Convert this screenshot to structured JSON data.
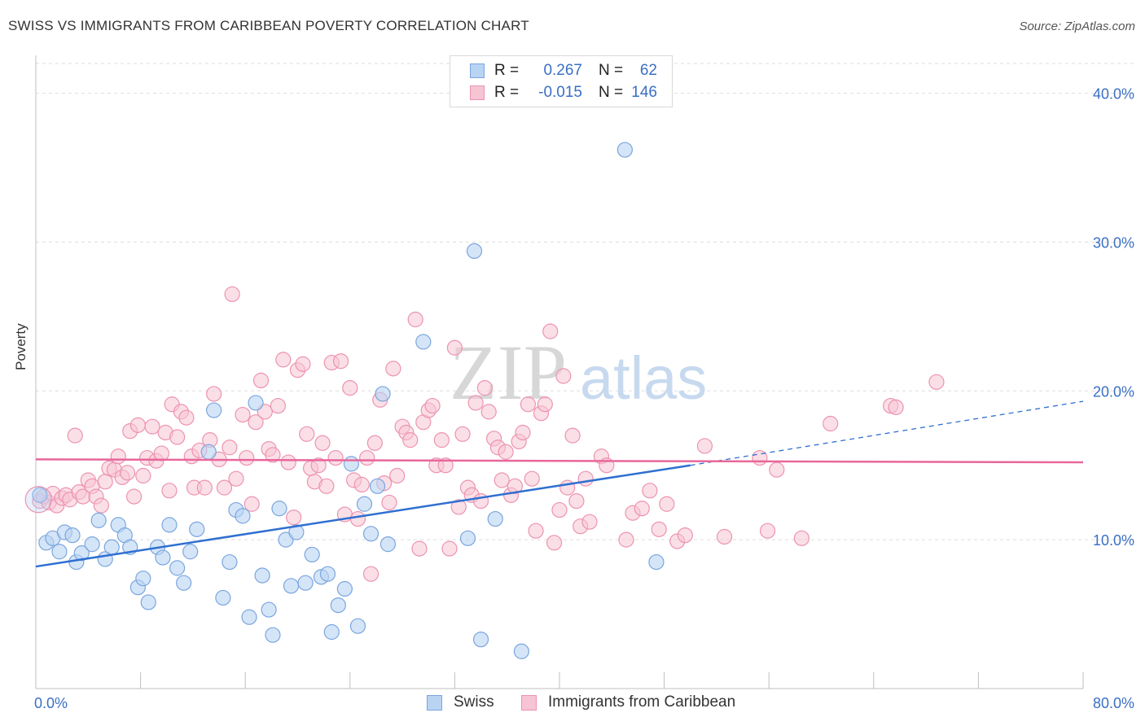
{
  "header": {
    "title": "SWISS VS IMMIGRANTS FROM CARIBBEAN POVERTY CORRELATION CHART",
    "source": "Source: ZipAtlas.com"
  },
  "legend": {
    "rows": [
      {
        "r_label": "R =",
        "r_value": "0.267",
        "n_label": "N =",
        "n_value": "62"
      },
      {
        "r_label": "R =",
        "r_value": "-0.015",
        "n_label": "N =",
        "n_value": "146"
      }
    ]
  },
  "bottom_legend": {
    "swiss": "Swiss",
    "caribbean": "Immigrants from Caribbean"
  },
  "colors": {
    "swiss_fill": "#b9d3f3",
    "swiss_stroke": "#7aa6de",
    "swiss_line": "#2f6fd0",
    "carib_fill": "#f7c4d4",
    "carib_stroke": "#ec93b0",
    "carib_line": "#e8679a",
    "tick_label": "#3a6fc4",
    "grid": "#dddddd"
  },
  "chart_data": {
    "type": "scatter",
    "title": "SWISS VS IMMIGRANTS FROM CARIBBEAN POVERTY CORRELATION CHART",
    "ylabel": "Poverty",
    "xlabel": "",
    "xlim": [
      0,
      80
    ],
    "ylim": [
      0,
      42
    ],
    "x_tick_labels": [
      "0.0%",
      "80.0%"
    ],
    "y_ticks": [
      10,
      20,
      30,
      40
    ],
    "y_tick_labels": [
      "10.0%",
      "20.0%",
      "30.0%",
      "40.0%"
    ],
    "grid": true,
    "legend_position": "top-center",
    "watermark": {
      "zip": "ZIP",
      "atlas": "atlas"
    },
    "series": [
      {
        "name": "Swiss",
        "r": 0.267,
        "n": 62,
        "trend": {
          "x0": 0,
          "y0": 8.2,
          "x1": 50,
          "y1": 15.0,
          "dashed_to_x": 80,
          "dashed_to_y": 19.3
        },
        "points": [
          [
            0.3,
            13.0
          ],
          [
            0.8,
            9.8
          ],
          [
            1.3,
            10.1
          ],
          [
            1.8,
            9.2
          ],
          [
            2.2,
            10.5
          ],
          [
            2.8,
            10.3
          ],
          [
            3.1,
            8.5
          ],
          [
            3.5,
            9.1
          ],
          [
            4.3,
            9.7
          ],
          [
            4.8,
            11.3
          ],
          [
            5.3,
            8.7
          ],
          [
            5.8,
            9.5
          ],
          [
            6.3,
            11.0
          ],
          [
            6.8,
            10.3
          ],
          [
            7.2,
            9.5
          ],
          [
            7.8,
            6.8
          ],
          [
            8.2,
            7.4
          ],
          [
            8.6,
            5.8
          ],
          [
            9.3,
            9.5
          ],
          [
            9.7,
            8.8
          ],
          [
            10.2,
            11.0
          ],
          [
            10.8,
            8.1
          ],
          [
            11.3,
            7.1
          ],
          [
            11.8,
            9.2
          ],
          [
            12.3,
            10.7
          ],
          [
            13.2,
            15.9
          ],
          [
            13.6,
            18.7
          ],
          [
            14.3,
            6.1
          ],
          [
            14.8,
            8.5
          ],
          [
            15.3,
            12.0
          ],
          [
            15.8,
            11.6
          ],
          [
            16.3,
            4.8
          ],
          [
            16.8,
            19.2
          ],
          [
            17.3,
            7.6
          ],
          [
            17.8,
            5.3
          ],
          [
            18.1,
            3.6
          ],
          [
            18.6,
            12.1
          ],
          [
            19.1,
            10.0
          ],
          [
            19.5,
            6.9
          ],
          [
            19.9,
            10.5
          ],
          [
            20.6,
            7.1
          ],
          [
            21.1,
            9.0
          ],
          [
            21.8,
            7.5
          ],
          [
            22.3,
            7.7
          ],
          [
            22.6,
            3.8
          ],
          [
            23.1,
            5.6
          ],
          [
            23.6,
            6.7
          ],
          [
            24.1,
            15.1
          ],
          [
            24.6,
            4.2
          ],
          [
            25.1,
            12.4
          ],
          [
            25.6,
            10.4
          ],
          [
            26.1,
            13.6
          ],
          [
            26.5,
            19.8
          ],
          [
            26.9,
            9.7
          ],
          [
            29.6,
            23.3
          ],
          [
            33.0,
            10.1
          ],
          [
            33.5,
            29.4
          ],
          [
            34.0,
            3.3
          ],
          [
            35.1,
            11.4
          ],
          [
            37.1,
            2.5
          ],
          [
            45.0,
            36.2
          ],
          [
            47.4,
            8.5
          ]
        ]
      },
      {
        "name": "Immigrants from Caribbean",
        "r": -0.015,
        "n": 146,
        "trend": {
          "x0": 0,
          "y0": 15.4,
          "x1": 80,
          "y1": 15.2
        },
        "points": [
          [
            0.3,
            12.6
          ],
          [
            0.6,
            12.9
          ],
          [
            1.0,
            12.5
          ],
          [
            1.3,
            13.1
          ],
          [
            1.6,
            12.3
          ],
          [
            2.0,
            12.8
          ],
          [
            2.3,
            13.0
          ],
          [
            2.6,
            12.7
          ],
          [
            3.0,
            17.0
          ],
          [
            3.3,
            13.2
          ],
          [
            3.6,
            12.9
          ],
          [
            4.0,
            14.0
          ],
          [
            4.3,
            13.6
          ],
          [
            4.6,
            12.9
          ],
          [
            5.0,
            12.3
          ],
          [
            5.3,
            13.9
          ],
          [
            5.6,
            14.8
          ],
          [
            6.0,
            14.7
          ],
          [
            6.3,
            15.6
          ],
          [
            6.6,
            14.2
          ],
          [
            7.0,
            14.5
          ],
          [
            7.2,
            17.3
          ],
          [
            7.5,
            12.9
          ],
          [
            7.8,
            17.7
          ],
          [
            8.2,
            14.3
          ],
          [
            8.5,
            15.5
          ],
          [
            8.9,
            17.6
          ],
          [
            9.2,
            15.3
          ],
          [
            9.6,
            15.8
          ],
          [
            9.9,
            17.2
          ],
          [
            10.2,
            13.3
          ],
          [
            10.4,
            19.1
          ],
          [
            10.8,
            16.9
          ],
          [
            11.1,
            18.6
          ],
          [
            11.5,
            18.2
          ],
          [
            11.9,
            15.6
          ],
          [
            12.1,
            13.5
          ],
          [
            12.5,
            16.0
          ],
          [
            12.9,
            13.5
          ],
          [
            13.3,
            16.7
          ],
          [
            13.6,
            19.8
          ],
          [
            14.0,
            15.4
          ],
          [
            14.4,
            13.5
          ],
          [
            14.8,
            16.2
          ],
          [
            15.0,
            26.5
          ],
          [
            15.3,
            14.1
          ],
          [
            15.8,
            18.4
          ],
          [
            16.1,
            15.5
          ],
          [
            16.5,
            12.4
          ],
          [
            16.8,
            17.9
          ],
          [
            17.2,
            20.7
          ],
          [
            17.5,
            18.6
          ],
          [
            17.8,
            16.1
          ],
          [
            18.1,
            15.7
          ],
          [
            18.5,
            19.0
          ],
          [
            18.9,
            22.1
          ],
          [
            19.3,
            15.2
          ],
          [
            19.7,
            11.5
          ],
          [
            20.0,
            21.4
          ],
          [
            20.4,
            21.8
          ],
          [
            20.7,
            17.1
          ],
          [
            21.0,
            14.8
          ],
          [
            21.3,
            13.9
          ],
          [
            21.6,
            15.0
          ],
          [
            21.9,
            16.5
          ],
          [
            22.2,
            13.6
          ],
          [
            22.6,
            21.9
          ],
          [
            22.9,
            15.5
          ],
          [
            23.3,
            22.0
          ],
          [
            23.6,
            11.7
          ],
          [
            24.0,
            20.2
          ],
          [
            24.3,
            14.0
          ],
          [
            24.6,
            11.4
          ],
          [
            24.9,
            13.7
          ],
          [
            25.3,
            15.5
          ],
          [
            25.6,
            7.7
          ],
          [
            25.9,
            16.5
          ],
          [
            26.3,
            19.4
          ],
          [
            26.6,
            13.8
          ],
          [
            27.0,
            12.5
          ],
          [
            27.3,
            21.5
          ],
          [
            27.6,
            14.3
          ],
          [
            28.0,
            17.6
          ],
          [
            28.3,
            17.2
          ],
          [
            28.6,
            16.7
          ],
          [
            29.0,
            24.8
          ],
          [
            29.3,
            9.4
          ],
          [
            29.6,
            17.9
          ],
          [
            30.0,
            18.7
          ],
          [
            30.3,
            19.0
          ],
          [
            30.6,
            15.0
          ],
          [
            31.0,
            16.7
          ],
          [
            31.3,
            15.0
          ],
          [
            31.6,
            9.4
          ],
          [
            32.0,
            22.9
          ],
          [
            32.3,
            12.2
          ],
          [
            32.6,
            17.1
          ],
          [
            33.0,
            13.5
          ],
          [
            33.3,
            13.0
          ],
          [
            33.6,
            19.2
          ],
          [
            34.0,
            12.6
          ],
          [
            34.3,
            20.2
          ],
          [
            34.6,
            18.6
          ],
          [
            35.0,
            16.8
          ],
          [
            35.3,
            16.2
          ],
          [
            35.6,
            14.0
          ],
          [
            35.9,
            15.9
          ],
          [
            36.3,
            13.0
          ],
          [
            36.6,
            13.6
          ],
          [
            36.9,
            16.6
          ],
          [
            37.2,
            17.2
          ],
          [
            37.6,
            19.1
          ],
          [
            37.9,
            14.1
          ],
          [
            38.2,
            10.6
          ],
          [
            38.6,
            18.5
          ],
          [
            38.9,
            19.1
          ],
          [
            39.3,
            24.0
          ],
          [
            39.6,
            9.8
          ],
          [
            40.0,
            12.0
          ],
          [
            40.3,
            21.0
          ],
          [
            40.6,
            13.5
          ],
          [
            41.0,
            17.0
          ],
          [
            41.3,
            12.6
          ],
          [
            41.6,
            10.9
          ],
          [
            42.0,
            14.1
          ],
          [
            42.3,
            11.2
          ],
          [
            43.2,
            15.6
          ],
          [
            43.6,
            15.0
          ],
          [
            45.1,
            10.0
          ],
          [
            45.6,
            11.8
          ],
          [
            46.3,
            12.1
          ],
          [
            46.9,
            13.3
          ],
          [
            47.6,
            10.7
          ],
          [
            48.2,
            12.4
          ],
          [
            49.0,
            9.9
          ],
          [
            49.6,
            10.3
          ],
          [
            51.1,
            16.3
          ],
          [
            52.6,
            10.2
          ],
          [
            55.3,
            15.5
          ],
          [
            55.9,
            10.6
          ],
          [
            56.6,
            14.7
          ],
          [
            58.5,
            10.1
          ],
          [
            60.7,
            17.8
          ],
          [
            65.3,
            19.0
          ],
          [
            65.7,
            18.9
          ],
          [
            68.8,
            20.6
          ]
        ]
      }
    ]
  }
}
